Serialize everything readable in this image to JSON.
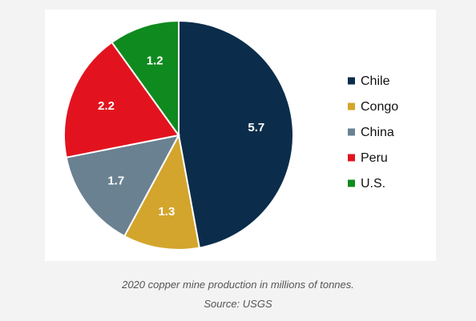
{
  "chart_data": {
    "type": "pie",
    "title": "",
    "categories": [
      "Chile",
      "Congo",
      "China",
      "Peru",
      "U.S."
    ],
    "values": [
      5.7,
      1.3,
      1.7,
      2.2,
      1.2
    ],
    "data_labels": [
      "5.7",
      "1.3",
      "1.7",
      "2.2",
      "1.2"
    ],
    "colors": [
      "#0b2d4b",
      "#d4a52c",
      "#6a8191",
      "#e2131f",
      "#0f8a1e"
    ],
    "legend_position": "right",
    "start_angle_deg": 0,
    "direction": "clockwise"
  },
  "caption": {
    "line1": "2020 copper mine production in millions of tonnes.",
    "line2": "Source: USGS"
  }
}
